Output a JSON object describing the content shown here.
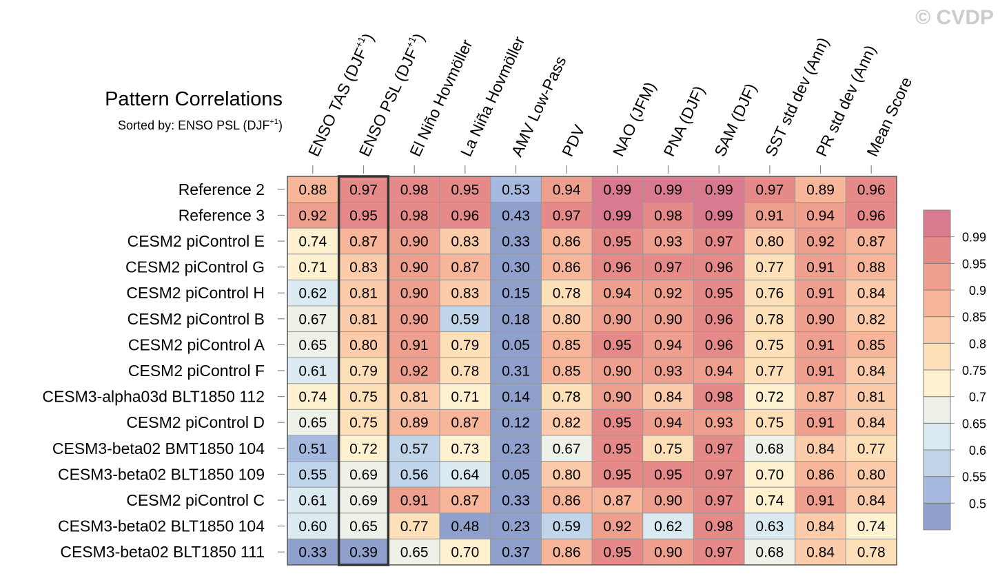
{
  "watermark": "© CVDP",
  "colors": {
    "palette": [
      "#8fa0cc",
      "#a5bade",
      "#c0d5e9",
      "#dbeaf1",
      "#eef1e7",
      "#fdf1d0",
      "#fde0b7",
      "#fcccaa",
      "#f7b699",
      "#ef9f8e",
      "#e58a88",
      "#d97a8f"
    ],
    "grid": "#999999",
    "frame": "#555555",
    "highlight": "#333333"
  },
  "chart_data": {
    "type": "heatmap",
    "title": "Pattern Correlations",
    "subtitle_prefix": "Sorted by: ENSO PSL (DJF",
    "subtitle_sup": "+1",
    "subtitle_suffix": ")",
    "highlighted_column": 1,
    "columns": [
      {
        "text": "ENSO TAS (DJF",
        "sup": "+1",
        "suffix": ")"
      },
      {
        "text": "ENSO PSL (DJF",
        "sup": "+1",
        "suffix": ")"
      },
      {
        "text": "El Niño Hovmöller"
      },
      {
        "text": "La Niña Hovmöller"
      },
      {
        "text": "AMV Low-Pass"
      },
      {
        "text": "PDV"
      },
      {
        "text": "NAO (JFM)"
      },
      {
        "text": "PNA (DJF)"
      },
      {
        "text": "SAM (DJF)"
      },
      {
        "text": "SST std dev (Ann)"
      },
      {
        "text": "PR std dev (Ann)"
      },
      {
        "text": "Mean Score"
      }
    ],
    "rows": [
      {
        "name": "Reference 2",
        "values": [
          "0.88",
          "0.97",
          "0.98",
          "0.95",
          "0.53",
          "0.94",
          "0.99",
          "0.99",
          "0.99",
          "0.97",
          "0.89",
          "0.96"
        ]
      },
      {
        "name": "Reference 3",
        "values": [
          "0.92",
          "0.95",
          "0.98",
          "0.96",
          "0.43",
          "0.97",
          "0.99",
          "0.98",
          "0.99",
          "0.91",
          "0.94",
          "0.96"
        ]
      },
      {
        "name": "CESM2 piControl E",
        "values": [
          "0.74",
          "0.87",
          "0.90",
          "0.83",
          "0.33",
          "0.86",
          "0.95",
          "0.93",
          "0.97",
          "0.80",
          "0.92",
          "0.87"
        ]
      },
      {
        "name": "CESM2 piControl G",
        "values": [
          "0.71",
          "0.83",
          "0.90",
          "0.87",
          "0.30",
          "0.86",
          "0.96",
          "0.97",
          "0.96",
          "0.77",
          "0.91",
          "0.88"
        ]
      },
      {
        "name": "CESM2 piControl H",
        "values": [
          "0.62",
          "0.81",
          "0.90",
          "0.83",
          "0.15",
          "0.78",
          "0.94",
          "0.92",
          "0.95",
          "0.76",
          "0.91",
          "0.84"
        ]
      },
      {
        "name": "CESM2 piControl B",
        "values": [
          "0.67",
          "0.81",
          "0.90",
          "0.59",
          "0.18",
          "0.80",
          "0.90",
          "0.90",
          "0.96",
          "0.78",
          "0.90",
          "0.82"
        ]
      },
      {
        "name": "CESM2 piControl A",
        "values": [
          "0.65",
          "0.80",
          "0.91",
          "0.79",
          "0.05",
          "0.85",
          "0.95",
          "0.94",
          "0.96",
          "0.75",
          "0.91",
          "0.85"
        ]
      },
      {
        "name": "CESM2 piControl F",
        "values": [
          "0.61",
          "0.79",
          "0.92",
          "0.78",
          "0.31",
          "0.85",
          "0.90",
          "0.93",
          "0.94",
          "0.77",
          "0.91",
          "0.84"
        ]
      },
      {
        "name": "CESM3-alpha03d BLT1850 112",
        "values": [
          "0.74",
          "0.75",
          "0.81",
          "0.71",
          "0.14",
          "0.78",
          "0.90",
          "0.84",
          "0.98",
          "0.72",
          "0.87",
          "0.81"
        ]
      },
      {
        "name": "CESM2 piControl D",
        "values": [
          "0.65",
          "0.75",
          "0.89",
          "0.87",
          "0.12",
          "0.82",
          "0.95",
          "0.94",
          "0.93",
          "0.75",
          "0.91",
          "0.84"
        ]
      },
      {
        "name": "CESM3-beta02 BMT1850 104",
        "values": [
          "0.51",
          "0.72",
          "0.57",
          "0.73",
          "0.23",
          "0.67",
          "0.95",
          "0.75",
          "0.97",
          "0.68",
          "0.84",
          "0.77"
        ]
      },
      {
        "name": "CESM3-beta02 BLT1850 109",
        "values": [
          "0.55",
          "0.69",
          "0.56",
          "0.64",
          "0.05",
          "0.80",
          "0.95",
          "0.95",
          "0.97",
          "0.70",
          "0.86",
          "0.80"
        ]
      },
      {
        "name": "CESM2 piControl C",
        "values": [
          "0.61",
          "0.69",
          "0.91",
          "0.87",
          "0.33",
          "0.86",
          "0.87",
          "0.90",
          "0.97",
          "0.74",
          "0.91",
          "0.84"
        ]
      },
      {
        "name": "CESM3-beta02 BLT1850 104",
        "values": [
          "0.60",
          "0.65",
          "0.77",
          "0.48",
          "0.23",
          "0.59",
          "0.92",
          "0.62",
          "0.98",
          "0.63",
          "0.84",
          "0.74"
        ]
      },
      {
        "name": "CESM3-beta02 BLT1850 111",
        "values": [
          "0.33",
          "0.39",
          "0.65",
          "0.70",
          "0.37",
          "0.86",
          "0.95",
          "0.90",
          "0.97",
          "0.68",
          "0.84",
          "0.78"
        ]
      }
    ],
    "colorbar": {
      "levels": [
        0.5,
        0.55,
        0.6,
        0.65,
        0.7,
        0.75,
        0.8,
        0.85,
        0.9,
        0.95,
        0.99
      ],
      "labels": [
        "0.5",
        "0.55",
        "0.6",
        "0.65",
        "0.7",
        "0.75",
        "0.8",
        "0.85",
        "0.9",
        "0.95",
        "0.99"
      ]
    }
  }
}
